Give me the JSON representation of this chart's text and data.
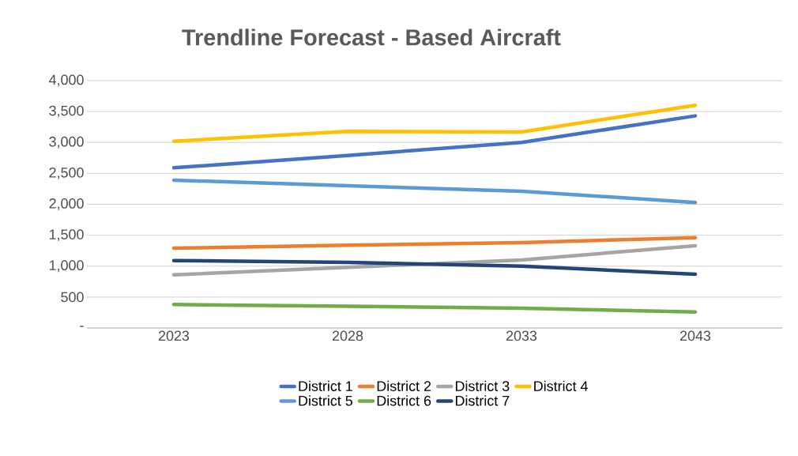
{
  "chart_data": {
    "type": "line",
    "title": "Trendline Forecast - Based Aircraft",
    "categories": [
      "2023",
      "2028",
      "2033",
      "2043"
    ],
    "ylim": [
      0,
      4000
    ],
    "yticks": [
      {
        "value": 0,
        "label": "-"
      },
      {
        "value": 500,
        "label": "500"
      },
      {
        "value": 1000,
        "label": "1,000"
      },
      {
        "value": 1500,
        "label": "1,500"
      },
      {
        "value": 2000,
        "label": "2,000"
      },
      {
        "value": 2500,
        "label": "2,500"
      },
      {
        "value": 3000,
        "label": "3,000"
      },
      {
        "value": 3500,
        "label": "3,500"
      },
      {
        "value": 4000,
        "label": "4,000"
      }
    ],
    "grid": "y",
    "legend": "bottom",
    "series": [
      {
        "name": "District 1",
        "color": "#4472c4",
        "values": [
          2590,
          2790,
          3000,
          3430
        ]
      },
      {
        "name": "District 2",
        "color": "#ed7d31",
        "values": [
          1290,
          1340,
          1380,
          1460
        ]
      },
      {
        "name": "District 3",
        "color": "#a5a5a5",
        "values": [
          860,
          980,
          1100,
          1330
        ]
      },
      {
        "name": "District 4",
        "color": "#ffc000",
        "values": [
          3020,
          3180,
          3170,
          3600
        ]
      },
      {
        "name": "District 5",
        "color": "#5b9bd5",
        "values": [
          2390,
          2300,
          2210,
          2030
        ]
      },
      {
        "name": "District 6",
        "color": "#70ad47",
        "values": [
          380,
          350,
          320,
          260
        ]
      },
      {
        "name": "District 7",
        "color": "#264478",
        "values": [
          1090,
          1060,
          1000,
          870
        ]
      }
    ]
  }
}
